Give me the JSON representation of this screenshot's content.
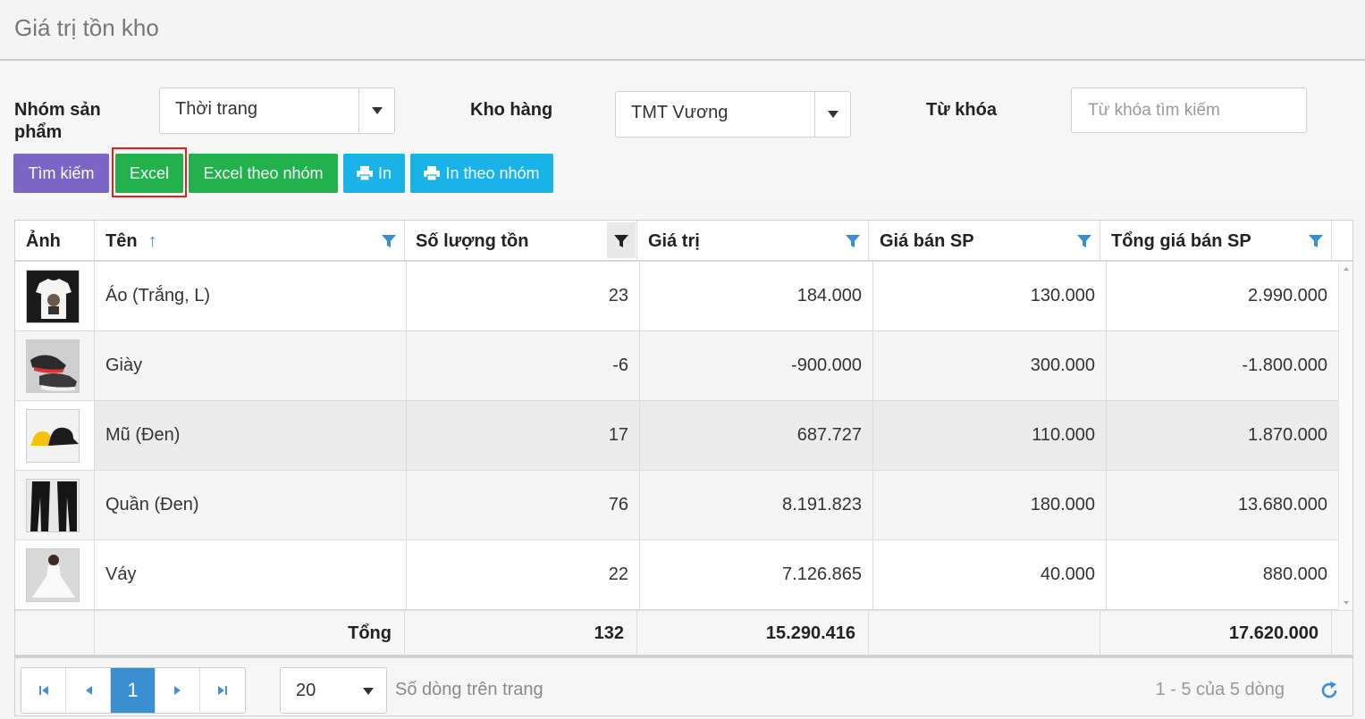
{
  "page": {
    "title": "Giá trị tồn kho"
  },
  "filters": {
    "group_label": "Nhóm sản phẩm",
    "group_value": "Thời trang",
    "warehouse_label": "Kho hàng",
    "warehouse_value": "TMT Vương",
    "keyword_label": "Từ khóa",
    "keyword_placeholder": "Từ khóa tìm kiếm",
    "keyword_value": ""
  },
  "buttons": {
    "search": "Tìm kiếm",
    "excel": "Excel",
    "excel_group": "Excel theo nhóm",
    "print": "In",
    "print_group": "In theo nhóm"
  },
  "columns": {
    "image": "Ảnh",
    "name": "Tên",
    "qty": "Số lượng tồn",
    "value": "Giá trị",
    "price": "Giá bán SP",
    "total_price": "Tổng giá bán SP"
  },
  "rows": [
    {
      "name": "Áo (Trắng, L)",
      "qty": "23",
      "value": "184.000",
      "price": "130.000",
      "total": "2.990.000",
      "image_icon": "white-tshirt"
    },
    {
      "name": "Giày",
      "qty": "-6",
      "value": "-900.000",
      "price": "300.000",
      "total": "-1.800.000",
      "image_icon": "sneaker"
    },
    {
      "name": "Mũ (Đen)",
      "qty": "17",
      "value": "687.727",
      "price": "110.000",
      "total": "1.870.000",
      "image_icon": "bucket-hat"
    },
    {
      "name": "Quần (Đen)",
      "qty": "76",
      "value": "8.191.823",
      "price": "180.000",
      "total": "13.680.000",
      "image_icon": "black-pants"
    },
    {
      "name": "Váy",
      "qty": "22",
      "value": "7.126.865",
      "price": "40.000",
      "total": "880.000",
      "image_icon": "white-dress"
    }
  ],
  "totals": {
    "label": "Tổng",
    "qty": "132",
    "value": "15.290.416",
    "price": "",
    "total": "17.620.000"
  },
  "pager": {
    "current_page": "1",
    "page_size": "20",
    "page_size_label": "Số dòng trên trang",
    "info": "1 - 5 của 5 dòng"
  },
  "colors": {
    "search_button": "#7b66c6",
    "excel_button": "#22b14c",
    "print_button": "#1ab3e8",
    "active_page": "#3a8fd1",
    "highlight": "#e02020"
  }
}
